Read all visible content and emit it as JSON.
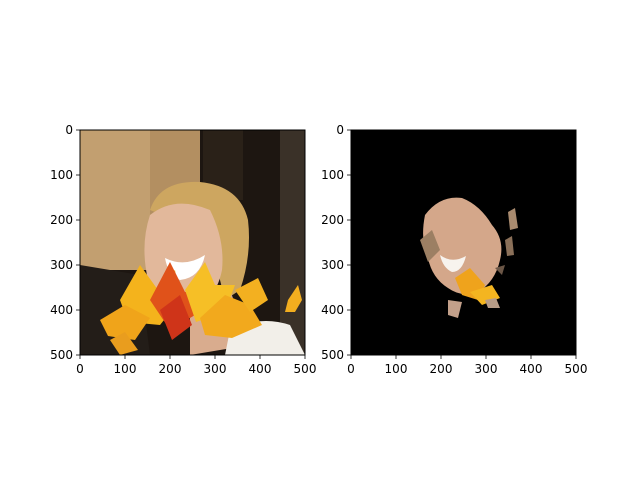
{
  "chart_data": [
    {
      "type": "image",
      "content": "photo of a smiling blonde woman with autumn leaves overlaid on the lower face",
      "xlim": [
        0,
        500
      ],
      "ylim": [
        500,
        0
      ],
      "xticks": [
        0,
        100,
        200,
        300,
        400,
        500
      ],
      "yticks": [
        0,
        100,
        200,
        300,
        400,
        500
      ],
      "xtick_labels": [
        "0",
        "100",
        "200",
        "300",
        "400",
        "500"
      ],
      "ytick_labels": [
        "0",
        "100",
        "200",
        "300",
        "400",
        "500"
      ],
      "grid": false
    },
    {
      "type": "image",
      "content": "segmentation mask of the face region on a black background",
      "xlim": [
        0,
        500
      ],
      "ylim": [
        500,
        0
      ],
      "xticks": [
        0,
        100,
        200,
        300,
        400,
        500
      ],
      "yticks": [
        0,
        100,
        200,
        300,
        400,
        500
      ],
      "xtick_labels": [
        "0",
        "100",
        "200",
        "300",
        "400",
        "500"
      ],
      "ytick_labels": [
        "0",
        "100",
        "200",
        "300",
        "400",
        "500"
      ],
      "grid": false
    }
  ],
  "colors": {
    "background_left_wall": "#c4a072",
    "background_dark": "#1c1510",
    "hair": "#cfa760",
    "skin": "#e2b79a",
    "leaf_yellow": "#f5b81c",
    "leaf_orange": "#e8731a",
    "leaf_red": "#d2381a",
    "mask_bg": "#000000"
  }
}
